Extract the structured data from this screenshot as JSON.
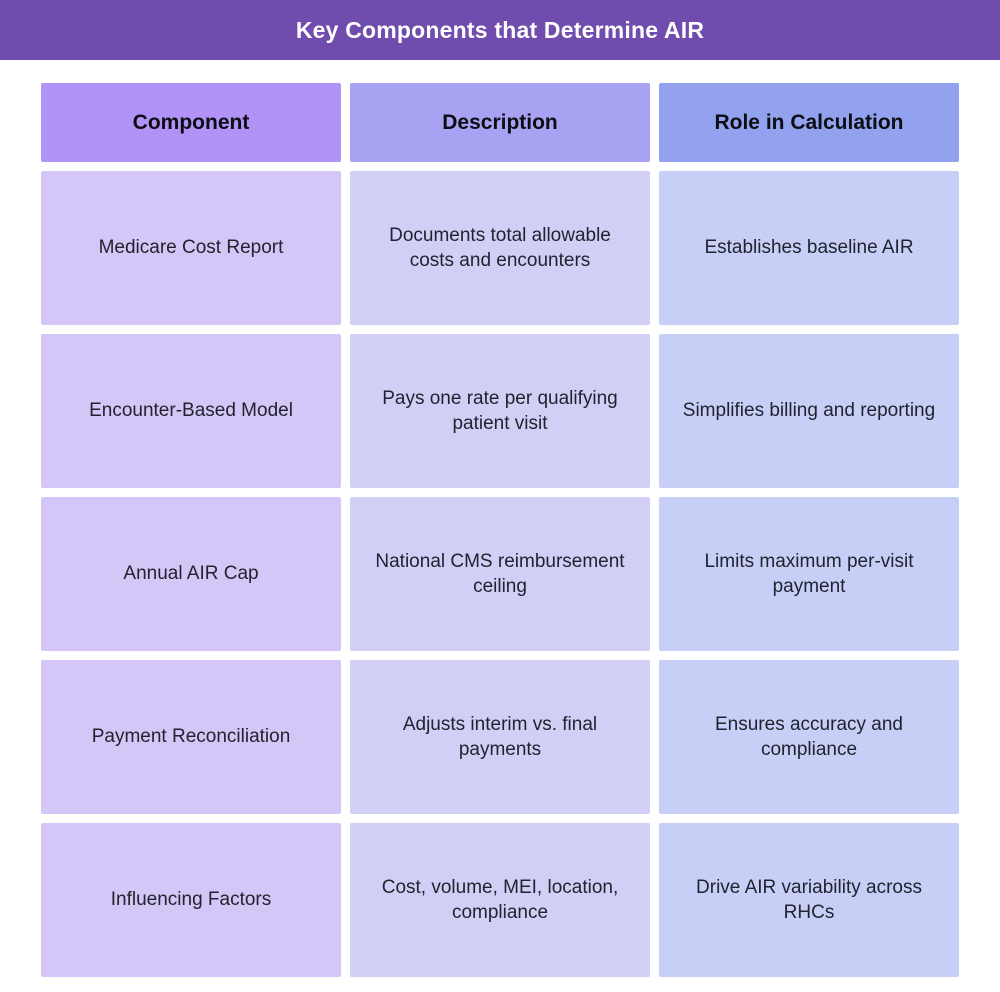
{
  "title": "Key Components that Determine AIR",
  "colors": {
    "title_bar": "#6F4CAD",
    "background": "#FFFFFF",
    "title_text": "#FFFFFF",
    "header_text": "#0D0D14",
    "cell_text": "#21232F"
  },
  "table": {
    "columns": [
      {
        "label": "Component",
        "header_bg": "#B192F6",
        "cell_bg": "#D4C6F6"
      },
      {
        "label": "Description",
        "header_bg": "#A8A2F2",
        "cell_bg": "#D2CFF7"
      },
      {
        "label": "Role in Calculation",
        "header_bg": "#93A2EF",
        "cell_bg": "#C8CFF7"
      }
    ],
    "rows": [
      [
        "Medicare Cost Report",
        "Documents total allowable costs and encounters",
        "Establishes baseline AIR"
      ],
      [
        "Encounter-Based Model",
        "Pays one rate per qualifying patient visit",
        "Simplifies billing and reporting"
      ],
      [
        "Annual AIR Cap",
        "National CMS reimbursement ceiling",
        "Limits maximum per-visit payment"
      ],
      [
        "Payment Reconciliation",
        "Adjusts interim vs. final payments",
        "Ensures accuracy and compliance"
      ],
      [
        "Influencing Factors",
        "Cost, volume, MEI, location, compliance",
        "Drive AIR variability across RHCs"
      ]
    ]
  }
}
